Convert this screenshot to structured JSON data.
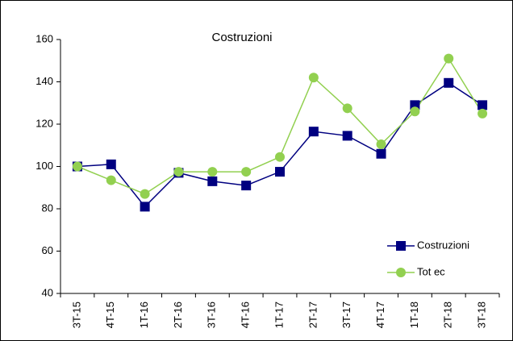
{
  "chart_data": {
    "type": "line",
    "title": "Costruzioni",
    "categories": [
      "3T-15",
      "4T-15",
      "1T-16",
      "2T-16",
      "3T-16",
      "4T-16",
      "1T-17",
      "2T-17",
      "3T-17",
      "4T-17",
      "1T-18",
      "2T-18",
      "3T-18"
    ],
    "series": [
      {
        "name": "Costruzioni",
        "color": "#000080",
        "marker": "square",
        "values": [
          100,
          101,
          81,
          97,
          93,
          91,
          97.5,
          116.5,
          114.5,
          106,
          129,
          139.5,
          129
        ]
      },
      {
        "name": "Tot ec",
        "color": "#92d050",
        "marker": "circle",
        "values": [
          100,
          93.5,
          87,
          97.5,
          97.5,
          97.5,
          104.5,
          142,
          127.5,
          110.5,
          126,
          151,
          125
        ]
      }
    ],
    "ylim": [
      40,
      160
    ],
    "yticks": [
      40,
      60,
      80,
      100,
      120,
      140,
      160
    ],
    "grid": false,
    "legend": "lower right"
  }
}
